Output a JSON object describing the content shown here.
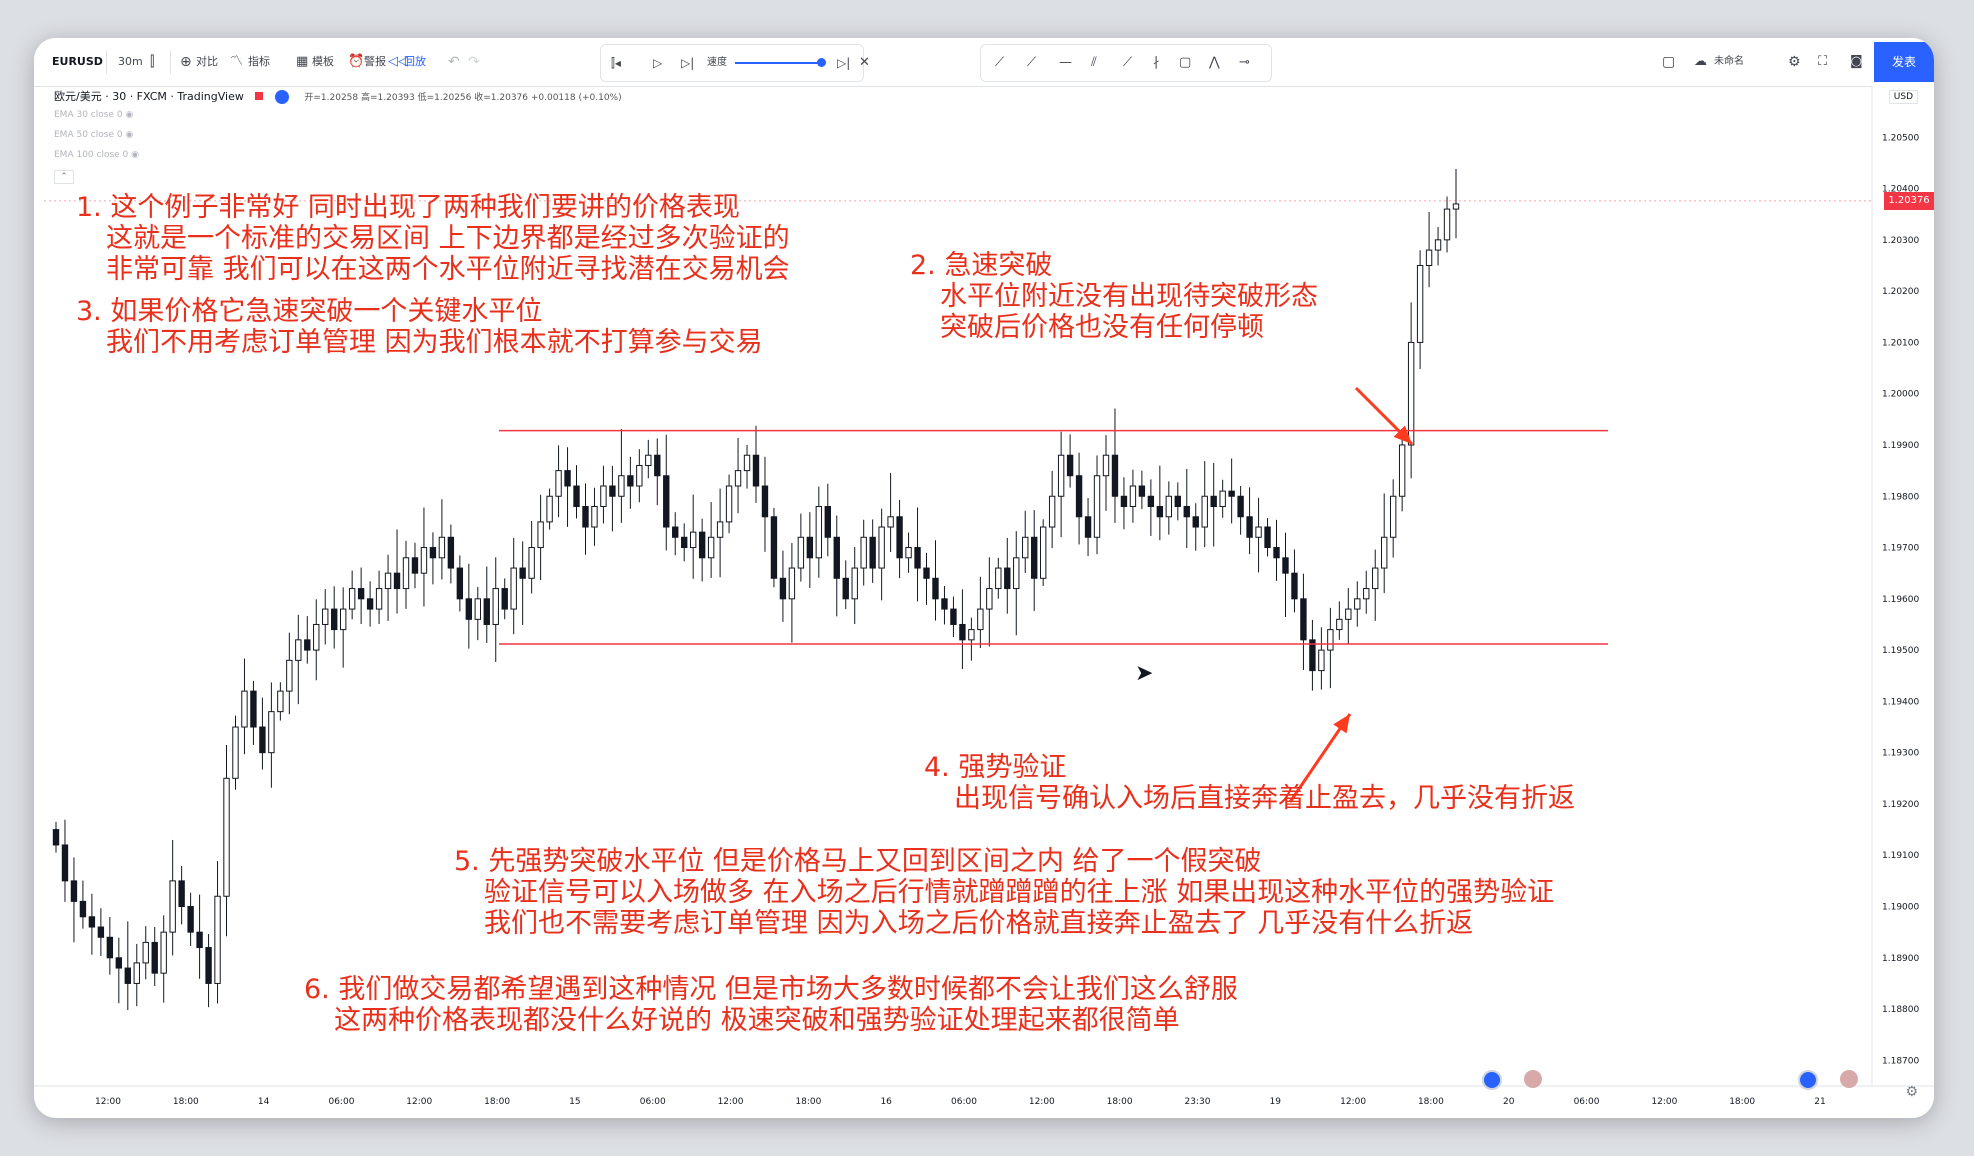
{
  "toolbar": {
    "symbol": "EURUSD",
    "interval": "30m",
    "compare": "对比",
    "indicators": "指标",
    "templates": "模板",
    "alert": "警报",
    "replay": "回放",
    "speed": "速度",
    "layout_name": "未命名",
    "publish": "发表"
  },
  "legend": {
    "title": "欧元/美元 · 30 · FXCM · TradingView",
    "ohlc": "开=1.20258 高=1.20393 低=1.20256 收=1.20376 +0.00118 (+0.10%)",
    "indicators": [
      "EMA 30 close 0",
      "EMA 50 close 0",
      "EMA 100 close 0"
    ]
  },
  "chart_data": {
    "type": "candlestick",
    "currency": "USD",
    "current_price": "1.20376",
    "ylim": [
      1.1865,
      1.206
    ],
    "price_ticks": [
      "1.20500",
      "1.20400",
      "1.20300",
      "1.20200",
      "1.20100",
      "1.20000",
      "1.19900",
      "1.19800",
      "1.19700",
      "1.19600",
      "1.19500",
      "1.19400",
      "1.19300",
      "1.19200",
      "1.19100",
      "1.19000",
      "1.18900",
      "1.18800",
      "1.18700"
    ],
    "time_ticks": [
      "12:00",
      "18:00",
      "14",
      "06:00",
      "12:00",
      "18:00",
      "15",
      "06:00",
      "12:00",
      "18:00",
      "16",
      "06:00",
      "12:00",
      "18:00",
      "23:30",
      "19",
      "12:00",
      "18:00",
      "20",
      "06:00",
      "12:00",
      "18:00",
      "21"
    ],
    "levels": [
      {
        "name": "resistance",
        "price": 1.19928
      },
      {
        "name": "support",
        "price": 1.19512
      }
    ],
    "closes": [
      1.1912,
      1.1905,
      1.1901,
      1.1898,
      1.1896,
      1.1894,
      1.189,
      1.1888,
      1.1885,
      1.1889,
      1.1893,
      1.1887,
      1.1895,
      1.1905,
      1.19,
      1.1895,
      1.1892,
      1.1885,
      1.1902,
      1.1925,
      1.1935,
      1.1942,
      1.1935,
      1.193,
      1.1938,
      1.1942,
      1.1948,
      1.1952,
      1.195,
      1.1955,
      1.1958,
      1.1954,
      1.1958,
      1.1962,
      1.196,
      1.1958,
      1.1962,
      1.1965,
      1.1962,
      1.1968,
      1.1965,
      1.197,
      1.1968,
      1.1972,
      1.1966,
      1.196,
      1.1956,
      1.196,
      1.1955,
      1.1962,
      1.1958,
      1.1966,
      1.1964,
      1.197,
      1.1975,
      1.198,
      1.1985,
      1.1982,
      1.1978,
      1.1974,
      1.1978,
      1.1982,
      1.198,
      1.1984,
      1.1982,
      1.1986,
      1.1988,
      1.1984,
      1.1974,
      1.1972,
      1.197,
      1.1973,
      1.1968,
      1.1972,
      1.1975,
      1.1982,
      1.1985,
      1.1988,
      1.1982,
      1.1976,
      1.1964,
      1.196,
      1.1966,
      1.1972,
      1.1968,
      1.1978,
      1.1972,
      1.1964,
      1.196,
      1.1966,
      1.1972,
      1.1966,
      1.1974,
      1.1976,
      1.1968,
      1.197,
      1.1966,
      1.1964,
      1.196,
      1.1958,
      1.1955,
      1.1952,
      1.1954,
      1.1958,
      1.1962,
      1.1966,
      1.1962,
      1.1968,
      1.1972,
      1.1964,
      1.1974,
      1.198,
      1.1988,
      1.1984,
      1.1976,
      1.1972,
      1.1984,
      1.1988,
      1.198,
      1.1978,
      1.1982,
      1.198,
      1.1978,
      1.1976,
      1.198,
      1.1978,
      1.1976,
      1.1974,
      1.198,
      1.1978,
      1.1981,
      1.198,
      1.1976,
      1.1972,
      1.1974,
      1.197,
      1.1968,
      1.1965,
      1.196,
      1.1952,
      1.1946,
      1.195,
      1.1954,
      1.1956,
      1.1958,
      1.196,
      1.1962,
      1.1966,
      1.1972,
      1.198,
      1.199,
      1.201,
      1.2025,
      1.2028,
      1.203,
      1.2036,
      1.2037
    ]
  },
  "annotations": [
    {
      "lines": [
        "1. 这个例子非常好 同时出现了两种我们要讲的价格表现",
        "这就是一个标准的交易区间 上下边界都是经过多次验证的",
        "非常可靠 我们可以在这两个水平位附近寻找潜在交易机会"
      ]
    },
    {
      "lines": [
        "3. 如果价格它急速突破一个关键水平位",
        "我们不用考虑订单管理 因为我们根本就不打算参与交易"
      ]
    },
    {
      "lines": [
        "2.  急速突破",
        "水平位附近没有出现待突破形态",
        "突破后价格也没有任何停顿"
      ]
    },
    {
      "lines": [
        "4.  强势验证",
        "出现信号确认入场后直接奔着止盈去，几乎没有折返"
      ]
    },
    {
      "lines": [
        "5. 先强势突破水平位 但是价格马上又回到区间之内 给了一个假突破",
        "验证信号可以入场做多 在入场之后行情就蹭蹭蹭的往上涨 如果出现这种水平位的强势验证",
        "我们也不需要考虑订单管理 因为入场之后价格就直接奔止盈去了 几乎没有什么折返"
      ]
    },
    {
      "lines": [
        "6. 我们做交易都希望遇到这种情况  但是市场大多数时候都不会让我们这么舒服",
        "这两种价格表现都没什么好说的  极速突破和强势验证处理起来都很简单"
      ]
    }
  ],
  "colors": {
    "up": "#ffffff",
    "down": "#131722",
    "level": "#f23645",
    "annotation": "#e8301c",
    "arrow": "#ff3b1f"
  }
}
